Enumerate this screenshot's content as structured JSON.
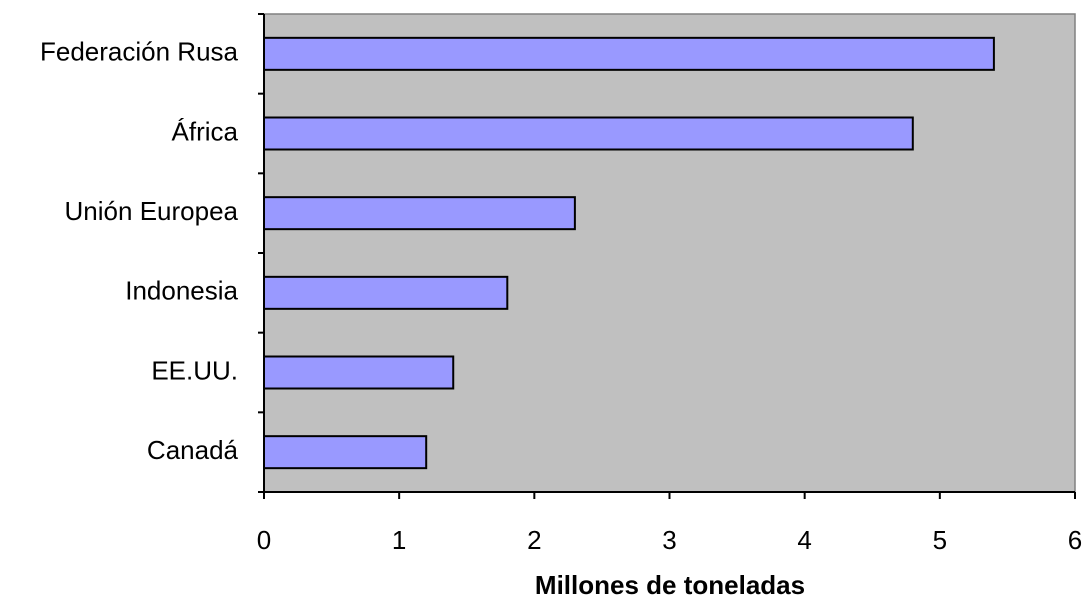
{
  "chart_data": {
    "type": "hbar",
    "x_label": "Millones de toneladas",
    "categories": [
      "Federación Rusa",
      "África",
      "Unión Europea",
      "Indonesia",
      "EE.UU.",
      "Canadá"
    ],
    "values": [
      5.4,
      4.8,
      2.3,
      1.8,
      1.4,
      1.2
    ],
    "color": "#9999ff",
    "background": "#c0c0c0",
    "xlim": [
      0,
      6
    ],
    "xticks": [
      0,
      1,
      2,
      3,
      4,
      5,
      6
    ]
  }
}
